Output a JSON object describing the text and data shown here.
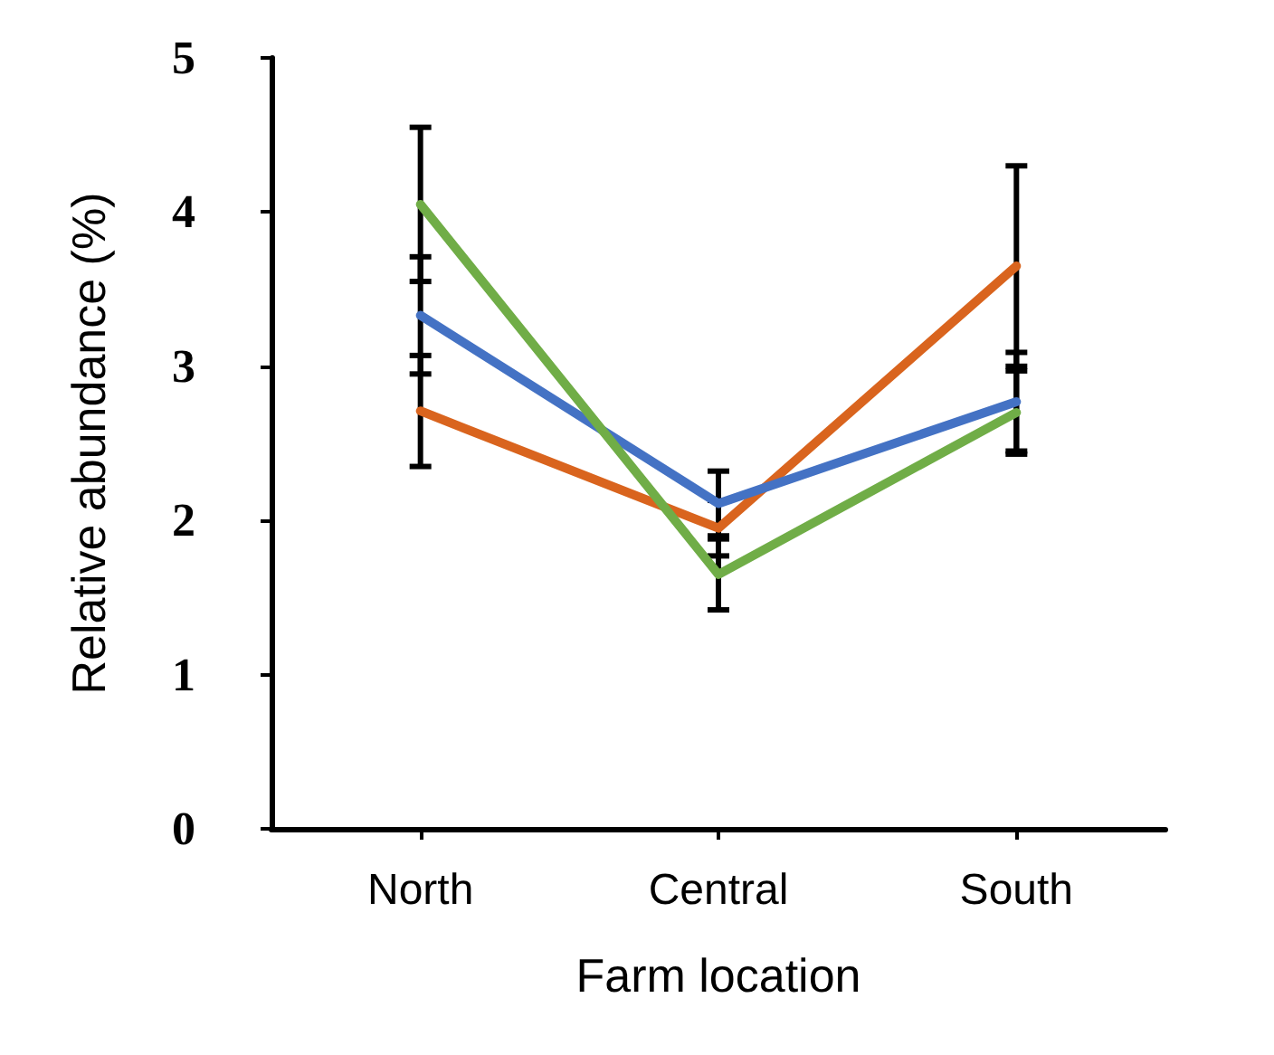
{
  "chart_data": {
    "type": "line",
    "xlabel": "Farm location",
    "ylabel": "Relative abundance (%)",
    "categories": [
      "North",
      "Central",
      "South"
    ],
    "series": [
      {
        "color": "#d9641e",
        "values": [
          2.71,
          1.95,
          3.65
        ],
        "errors": [
          0.36,
          0.18,
          0.65
        ]
      },
      {
        "color": "#4472c4",
        "values": [
          3.33,
          2.11,
          2.77
        ],
        "errors": [
          0.38,
          0.21,
          0.32
        ]
      },
      {
        "color": "#70ad47",
        "values": [
          4.05,
          1.65,
          2.7
        ],
        "errors": [
          0.5,
          0.23,
          0.27
        ]
      }
    ],
    "ylim": [
      0,
      5
    ],
    "yticks": [
      0,
      1,
      2,
      3,
      4,
      5
    ],
    "grid": false,
    "marker": "none",
    "line_style": "solid"
  }
}
